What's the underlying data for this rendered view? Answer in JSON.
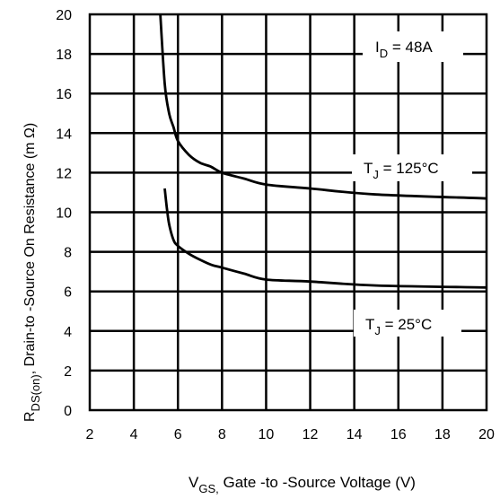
{
  "chart_data": {
    "type": "line",
    "x_ticks": [
      "2",
      "4",
      "6",
      "8",
      "10",
      "12",
      "14",
      "16",
      "18",
      "20"
    ],
    "y_ticks": [
      "0",
      "2",
      "4",
      "6",
      "8",
      "10",
      "12",
      "14",
      "16",
      "18",
      "20"
    ],
    "xlim": [
      2,
      20
    ],
    "ylim": [
      0,
      20
    ],
    "grid": true,
    "xlabel": {
      "main": "V",
      "sub": "GS,",
      "rest": " Gate -to -Source Voltage  (V)"
    },
    "ylabel": {
      "main": "R",
      "sub": "DS(on)",
      "rest": ",  Drain-to -Source On Resistance (m Ω)"
    },
    "annotations": {
      "id": {
        "main": "I",
        "sub": "D",
        "rest": " = 48A"
      },
      "tj125": {
        "main": "T",
        "sub": "J",
        "rest": " = 125°C"
      },
      "tj25": {
        "main": "T",
        "sub": "J",
        "rest": " = 25°C"
      }
    },
    "series": [
      {
        "label_key": "tj125",
        "x": [
          5.2,
          5.4,
          5.6,
          5.8,
          6.0,
          6.5,
          7.0,
          7.5,
          8.0,
          9.0,
          10.0,
          12.0,
          15.0,
          20.0
        ],
        "y": [
          20.0,
          16.5,
          15.0,
          14.3,
          13.6,
          12.9,
          12.5,
          12.3,
          12.0,
          11.7,
          11.4,
          11.2,
          10.9,
          10.7
        ]
      },
      {
        "label_key": "tj25",
        "x": [
          5.4,
          5.5,
          5.6,
          5.8,
          6.0,
          6.5,
          7.0,
          7.5,
          8.0,
          9.0,
          10.0,
          12.0,
          15.0,
          20.0
        ],
        "y": [
          11.2,
          10.2,
          9.4,
          8.6,
          8.3,
          7.9,
          7.6,
          7.35,
          7.2,
          6.9,
          6.6,
          6.5,
          6.3,
          6.2
        ]
      }
    ]
  }
}
